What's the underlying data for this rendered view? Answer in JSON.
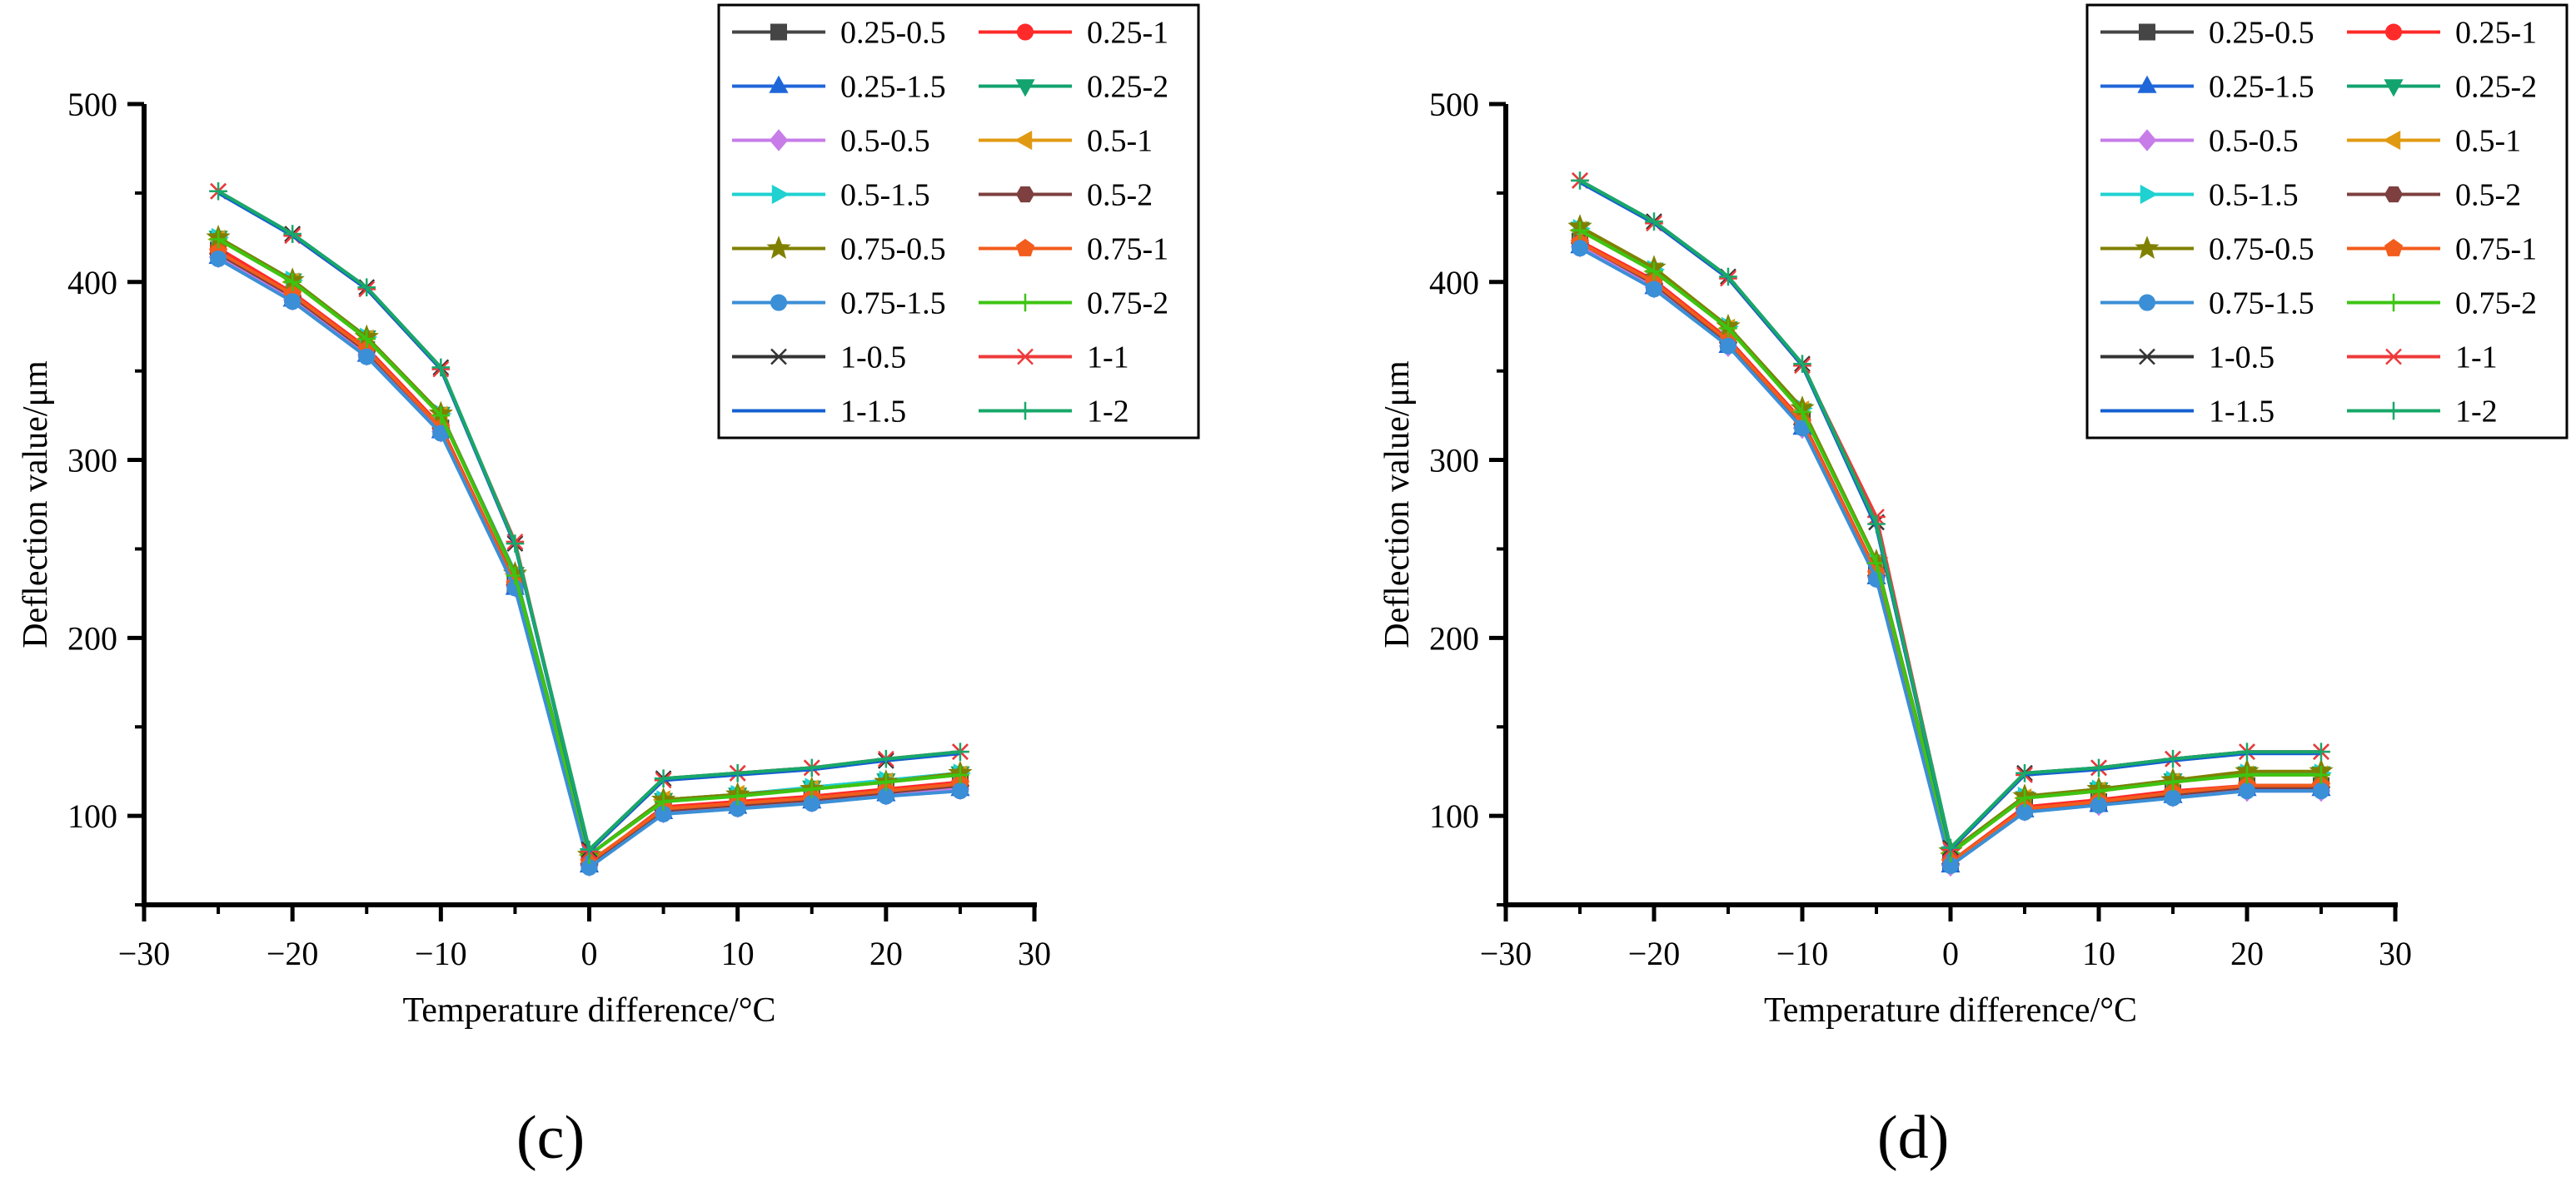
{
  "colors": {
    "0.25-0.5": "#454545",
    "0.25-1": "#ff2a2a",
    "0.25-1.5": "#1f66d8",
    "0.25-2": "#12a36f",
    "0.5-0.5": "#c77ce8",
    "0.5-1": "#e09a12",
    "0.5-1.5": "#1fd1d1",
    "0.5-2": "#7d3f3f",
    "0.75-0.5": "#808000",
    "0.75-1": "#f25c1c",
    "0.75-1.5": "#3b8fd6",
    "0.75-2": "#3dc413",
    "1-0.5": "#333333",
    "1-1": "#ee3a3a",
    "1-1.5": "#1560d0",
    "1-2": "#18a86a"
  },
  "panels": [
    {
      "id": "c",
      "label": "(c)"
    },
    {
      "id": "d",
      "label": "(d)"
    }
  ],
  "chart_data": [
    {
      "type": "line",
      "panel": "(c)",
      "xlabel": "Temperature difference/°C",
      "ylabel": "Deflection value/μm",
      "xlim": [
        -30,
        30
      ],
      "ylim": [
        50,
        500
      ],
      "xticks": [
        -30,
        -20,
        -10,
        0,
        10,
        20,
        30
      ],
      "yticks": [
        100,
        200,
        300,
        400,
        500
      ],
      "x": [
        -25,
        -20,
        -15,
        -10,
        -5,
        0,
        5,
        10,
        15,
        20,
        25
      ],
      "series": [
        {
          "name": "0.25-0.5",
          "marker": "square",
          "values": [
            418,
            393,
            362,
            318,
            230,
            73,
            104,
            107,
            110,
            114,
            118
          ]
        },
        {
          "name": "0.25-1",
          "marker": "circle",
          "values": [
            419,
            394,
            363,
            319,
            231,
            73,
            105,
            108,
            111,
            115,
            119
          ]
        },
        {
          "name": "0.25-1.5",
          "marker": "triangle-up",
          "values": [
            414,
            390,
            359,
            316,
            228,
            72,
            102,
            105,
            108,
            112,
            115
          ]
        },
        {
          "name": "0.25-2",
          "marker": "triangle-down",
          "values": [
            425,
            401,
            369,
            326,
            236,
            78,
            109,
            112,
            116,
            120,
            124
          ]
        },
        {
          "name": "0.5-0.5",
          "marker": "diamond",
          "values": [
            414,
            390,
            359,
            316,
            229,
            72,
            102,
            105,
            108,
            112,
            115
          ]
        },
        {
          "name": "0.5-1",
          "marker": "triangle-left",
          "values": [
            424,
            400,
            368,
            325,
            236,
            78,
            109,
            112,
            115,
            119,
            123
          ]
        },
        {
          "name": "0.5-1.5",
          "marker": "triangle-right",
          "values": [
            425,
            401,
            369,
            326,
            237,
            78,
            109,
            112,
            116,
            120,
            124
          ]
        },
        {
          "name": "0.5-2",
          "marker": "hexagon",
          "values": [
            416,
            392,
            361,
            318,
            230,
            73,
            103,
            106,
            109,
            113,
            117
          ]
        },
        {
          "name": "0.75-0.5",
          "marker": "star",
          "values": [
            425,
            401,
            369,
            326,
            236,
            78,
            109,
            112,
            115,
            119,
            124
          ]
        },
        {
          "name": "0.75-1",
          "marker": "pentagon",
          "values": [
            417,
            393,
            362,
            318,
            230,
            74,
            104,
            107,
            110,
            114,
            118
          ]
        },
        {
          "name": "0.75-1.5",
          "marker": "circle",
          "values": [
            413,
            389,
            358,
            315,
            228,
            71,
            101,
            104,
            107,
            111,
            114
          ]
        },
        {
          "name": "0.75-2",
          "marker": "plus",
          "values": [
            424,
            400,
            368,
            325,
            235,
            78,
            108,
            111,
            115,
            119,
            123
          ]
        },
        {
          "name": "1-0.5",
          "marker": "x",
          "values": [
            451,
            427,
            397,
            352,
            253,
            81,
            121,
            124,
            127,
            131,
            136
          ]
        },
        {
          "name": "1-1",
          "marker": "asterisk",
          "values": [
            451,
            426,
            396,
            351,
            254,
            80,
            120,
            124,
            127,
            132,
            136
          ]
        },
        {
          "name": "1-1.5",
          "marker": "none",
          "values": [
            450,
            426,
            396,
            351,
            252,
            80,
            120,
            123,
            126,
            131,
            135
          ]
        },
        {
          "name": "1-2",
          "marker": "plus",
          "values": [
            451,
            427,
            397,
            352,
            253,
            81,
            121,
            124,
            127,
            132,
            136
          ]
        }
      ]
    },
    {
      "type": "line",
      "panel": "(d)",
      "xlabel": "Temperature difference/°C",
      "ylabel": "Deflection value/μm",
      "xlim": [
        -30,
        30
      ],
      "ylim": [
        50,
        500
      ],
      "xticks": [
        -30,
        -20,
        -10,
        0,
        10,
        20,
        30
      ],
      "yticks": [
        100,
        200,
        300,
        400,
        500
      ],
      "x": [
        -25,
        -20,
        -15,
        -10,
        -5,
        0,
        5,
        10,
        15,
        20,
        25
      ],
      "series": [
        {
          "name": "0.25-0.5",
          "marker": "square",
          "values": [
            423,
            400,
            367,
            322,
            237,
            74,
            105,
            108,
            113,
            117,
            117
          ]
        },
        {
          "name": "0.25-1",
          "marker": "circle",
          "values": [
            423,
            401,
            368,
            322,
            237,
            74,
            105,
            109,
            114,
            117,
            117
          ]
        },
        {
          "name": "0.25-1.5",
          "marker": "triangle-up",
          "values": [
            420,
            397,
            364,
            318,
            234,
            72,
            103,
            106,
            111,
            115,
            115
          ]
        },
        {
          "name": "0.25-2",
          "marker": "triangle-down",
          "values": [
            430,
            407,
            374,
            328,
            243,
            79,
            110,
            115,
            120,
            124,
            124
          ]
        },
        {
          "name": "0.5-0.5",
          "marker": "diamond",
          "values": [
            420,
            397,
            364,
            318,
            234,
            72,
            103,
            106,
            111,
            114,
            114
          ]
        },
        {
          "name": "0.5-1",
          "marker": "triangle-left",
          "values": [
            429,
            406,
            374,
            328,
            242,
            79,
            110,
            114,
            119,
            123,
            123
          ]
        },
        {
          "name": "0.5-1.5",
          "marker": "triangle-right",
          "values": [
            430,
            407,
            375,
            329,
            243,
            79,
            111,
            115,
            120,
            124,
            124
          ]
        },
        {
          "name": "0.5-2",
          "marker": "hexagon",
          "values": [
            422,
            399,
            366,
            320,
            235,
            73,
            104,
            107,
            112,
            116,
            116
          ]
        },
        {
          "name": "0.75-0.5",
          "marker": "star",
          "values": [
            431,
            408,
            375,
            329,
            243,
            80,
            111,
            115,
            120,
            125,
            125
          ]
        },
        {
          "name": "0.75-1",
          "marker": "pentagon",
          "values": [
            422,
            400,
            367,
            321,
            236,
            74,
            104,
            108,
            113,
            117,
            117
          ]
        },
        {
          "name": "0.75-1.5",
          "marker": "circle",
          "values": [
            419,
            396,
            364,
            318,
            233,
            72,
            102,
            106,
            110,
            114,
            114
          ]
        },
        {
          "name": "0.75-2",
          "marker": "plus",
          "values": [
            429,
            406,
            374,
            327,
            242,
            79,
            110,
            114,
            119,
            123,
            123
          ]
        },
        {
          "name": "1-0.5",
          "marker": "x",
          "values": [
            457,
            434,
            403,
            354,
            265,
            82,
            124,
            127,
            132,
            136,
            136
          ]
        },
        {
          "name": "1-1",
          "marker": "asterisk",
          "values": [
            457,
            433,
            402,
            353,
            268,
            81,
            123,
            127,
            132,
            136,
            136
          ]
        },
        {
          "name": "1-1.5",
          "marker": "none",
          "values": [
            456,
            433,
            402,
            353,
            262,
            81,
            123,
            126,
            131,
            135,
            135
          ]
        },
        {
          "name": "1-2",
          "marker": "plus",
          "values": [
            457,
            434,
            403,
            354,
            264,
            82,
            124,
            127,
            132,
            136,
            136
          ]
        }
      ]
    }
  ]
}
